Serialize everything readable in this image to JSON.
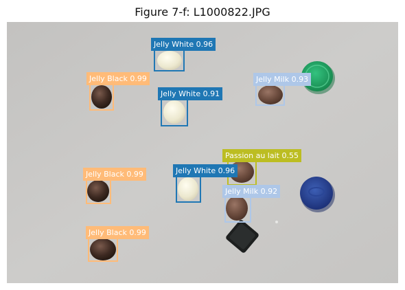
{
  "figure": {
    "title": "Figure 7-f: L1000822.JPG"
  },
  "colors": {
    "jelly_white": "#1f77b4",
    "jelly_black": "#ffbb78",
    "jelly_milk": "#aec7e8",
    "passion_au_lait": "#bcbd22"
  },
  "detections": [
    {
      "label": "Jelly White 0.96",
      "class": "jelly_white",
      "text_color": "#ffffff"
    },
    {
      "label": "Jelly Black 0.99",
      "class": "jelly_black",
      "text_color": "#ffffff"
    },
    {
      "label": "Jelly White 0.91",
      "class": "jelly_white",
      "text_color": "#ffffff"
    },
    {
      "label": "Jelly Milk 0.93",
      "class": "jelly_milk",
      "text_color": "#ffffff"
    },
    {
      "label": "Passion au lait 0.55",
      "class": "passion_au_lait",
      "text_color": "#ffffff"
    },
    {
      "label": "Jelly Black 0.99",
      "class": "jelly_black",
      "text_color": "#ffffff"
    },
    {
      "label": "Jelly White 0.96",
      "class": "jelly_white",
      "text_color": "#ffffff"
    },
    {
      "label": "Jelly Milk 0.92",
      "class": "jelly_milk",
      "text_color": "#ffffff"
    },
    {
      "label": "Jelly Black 0.99",
      "class": "jelly_black",
      "text_color": "#ffffff"
    }
  ]
}
